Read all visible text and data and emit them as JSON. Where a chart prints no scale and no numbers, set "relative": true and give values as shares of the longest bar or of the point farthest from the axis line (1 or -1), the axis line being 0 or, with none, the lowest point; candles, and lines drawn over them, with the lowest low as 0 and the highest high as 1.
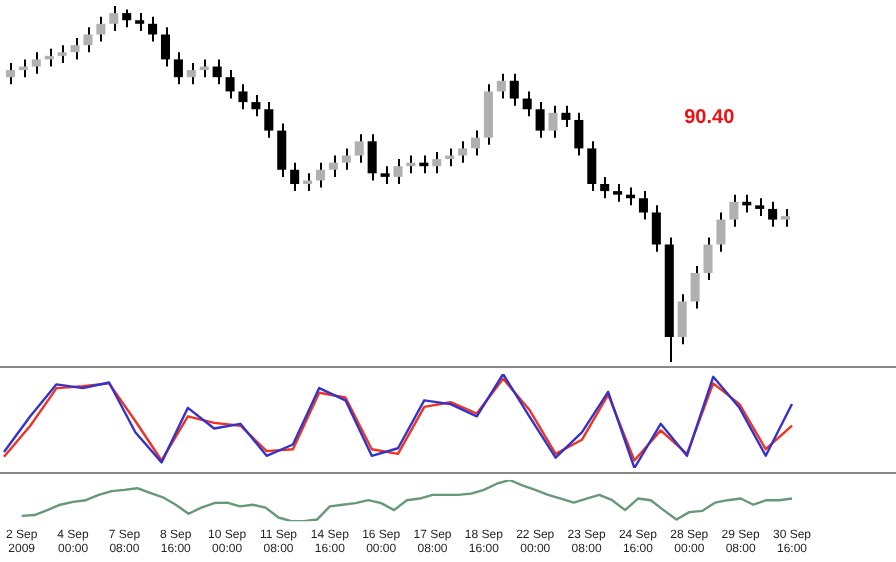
{
  "chart_data": [
    {
      "type": "candlestick",
      "relative": true,
      "grid": false,
      "legend": false,
      "tick_labels": false,
      "annotations": [
        "90.40"
      ],
      "categories": [
        null,
        null,
        null,
        null,
        null,
        null,
        null,
        null,
        null,
        null,
        null,
        null,
        null,
        null,
        null,
        null,
        null,
        null,
        null,
        null,
        null,
        null,
        null,
        null,
        null,
        null,
        null,
        null,
        null,
        null,
        null,
        null,
        null,
        null,
        null,
        null,
        null,
        null,
        null,
        null,
        null,
        null,
        null,
        null,
        null,
        null,
        null,
        null,
        null,
        null,
        null,
        null,
        null,
        null,
        null,
        null,
        null,
        null,
        null,
        null,
        null
      ],
      "ohlc": [
        [
          0.8,
          0.84,
          0.78,
          0.82
        ],
        [
          0.82,
          0.85,
          0.8,
          0.83
        ],
        [
          0.83,
          0.87,
          0.81,
          0.85
        ],
        [
          0.85,
          0.88,
          0.83,
          0.86
        ],
        [
          0.86,
          0.89,
          0.84,
          0.87
        ],
        [
          0.87,
          0.91,
          0.85,
          0.89
        ],
        [
          0.89,
          0.94,
          0.87,
          0.92
        ],
        [
          0.92,
          0.97,
          0.9,
          0.95
        ],
        [
          0.95,
          1,
          0.93,
          0.98
        ],
        [
          0.98,
          0.99,
          0.94,
          0.96
        ],
        [
          0.96,
          0.98,
          0.93,
          0.95
        ],
        [
          0.95,
          0.97,
          0.9,
          0.92
        ],
        [
          0.92,
          0.94,
          0.83,
          0.85
        ],
        [
          0.85,
          0.87,
          0.78,
          0.8
        ],
        [
          0.8,
          0.84,
          0.78,
          0.82
        ],
        [
          0.82,
          0.85,
          0.8,
          0.83
        ],
        [
          0.83,
          0.85,
          0.78,
          0.8
        ],
        [
          0.8,
          0.82,
          0.74,
          0.76
        ],
        [
          0.76,
          0.78,
          0.71,
          0.73
        ],
        [
          0.73,
          0.75,
          0.69,
          0.71
        ],
        [
          0.71,
          0.73,
          0.63,
          0.65
        ],
        [
          0.65,
          0.67,
          0.52,
          0.54
        ],
        [
          0.54,
          0.56,
          0.48,
          0.5
        ],
        [
          0.5,
          0.53,
          0.48,
          0.51
        ],
        [
          0.51,
          0.56,
          0.49,
          0.54
        ],
        [
          0.54,
          0.58,
          0.52,
          0.56
        ],
        [
          0.56,
          0.6,
          0.54,
          0.58
        ],
        [
          0.58,
          0.64,
          0.56,
          0.62
        ],
        [
          0.62,
          0.64,
          0.51,
          0.53
        ],
        [
          0.53,
          0.55,
          0.5,
          0.52
        ],
        [
          0.52,
          0.57,
          0.5,
          0.55
        ],
        [
          0.55,
          0.58,
          0.53,
          0.56
        ],
        [
          0.56,
          0.58,
          0.53,
          0.55
        ],
        [
          0.55,
          0.59,
          0.53,
          0.57
        ],
        [
          0.57,
          0.6,
          0.55,
          0.58
        ],
        [
          0.58,
          0.62,
          0.56,
          0.6
        ],
        [
          0.6,
          0.65,
          0.58,
          0.63
        ],
        [
          0.63,
          0.78,
          0.61,
          0.76
        ],
        [
          0.76,
          0.81,
          0.74,
          0.79
        ],
        [
          0.79,
          0.81,
          0.72,
          0.74
        ],
        [
          0.74,
          0.76,
          0.69,
          0.71
        ],
        [
          0.71,
          0.73,
          0.63,
          0.65
        ],
        [
          0.65,
          0.72,
          0.63,
          0.7
        ],
        [
          0.7,
          0.72,
          0.66,
          0.68
        ],
        [
          0.68,
          0.7,
          0.58,
          0.6
        ],
        [
          0.6,
          0.62,
          0.48,
          0.5
        ],
        [
          0.5,
          0.52,
          0.46,
          0.48
        ],
        [
          0.48,
          0.5,
          0.45,
          0.47
        ],
        [
          0.47,
          0.49,
          0.44,
          0.46
        ],
        [
          0.46,
          0.48,
          0.4,
          0.42
        ],
        [
          0.42,
          0.44,
          0.31,
          0.33
        ],
        [
          0.33,
          0.35,
          0,
          0.07
        ],
        [
          0.07,
          0.19,
          0.05,
          0.17
        ],
        [
          0.17,
          0.27,
          0.15,
          0.25
        ],
        [
          0.25,
          0.35,
          0.23,
          0.33
        ],
        [
          0.33,
          0.42,
          0.31,
          0.4
        ],
        [
          0.4,
          0.47,
          0.38,
          0.45
        ],
        [
          0.45,
          0.47,
          0.42,
          0.44
        ],
        [
          0.44,
          0.46,
          0.41,
          0.43
        ],
        [
          0.43,
          0.45,
          0.38,
          0.4
        ],
        [
          0.4,
          0.43,
          0.38,
          0.41
        ]
      ]
    },
    {
      "type": "line",
      "relative": true,
      "grid": false,
      "legend": false,
      "tick_labels": false,
      "marker": "none",
      "categories": [
        null,
        null,
        null,
        null,
        null,
        null,
        null,
        null,
        null,
        null,
        null,
        null,
        null,
        null,
        null,
        null,
        null,
        null,
        null,
        null,
        null,
        null,
        null,
        null,
        null,
        null,
        null,
        null,
        null,
        null,
        null
      ],
      "series": [
        {
          "color": "#3333cc",
          "values": [
            0.17,
            0.55,
            0.89,
            0.85,
            0.91,
            0.38,
            0.06,
            0.64,
            0.42,
            0.47,
            0.13,
            0.25,
            0.85,
            0.72,
            0.13,
            0.21,
            0.72,
            0.68,
            0.55,
            1,
            0.55,
            0.11,
            0.38,
            0.81,
            0,
            0.47,
            0.13,
            0.97,
            0.64,
            0.13,
            0.68
          ]
        },
        {
          "color": "#ee3322",
          "values": [
            0.12,
            0.45,
            0.85,
            0.87,
            0.9,
            0.5,
            0.08,
            0.55,
            0.48,
            0.45,
            0.18,
            0.2,
            0.8,
            0.75,
            0.2,
            0.15,
            0.65,
            0.7,
            0.58,
            0.95,
            0.62,
            0.15,
            0.3,
            0.78,
            0.08,
            0.4,
            0.15,
            0.9,
            0.68,
            0.2,
            0.45
          ]
        }
      ]
    },
    {
      "type": "line",
      "relative": true,
      "grid": false,
      "legend": false,
      "tick_labels": "x",
      "marker": "none",
      "categories": [
        "2 Sep 2009",
        null,
        null,
        null,
        "4 Sep 00:00",
        null,
        null,
        null,
        "7 Sep 08:00",
        null,
        null,
        null,
        "8 Sep 16:00",
        null,
        null,
        null,
        "10 Sep 00:00",
        null,
        null,
        null,
        "11 Sep 08:00",
        null,
        null,
        null,
        "14 Sep 16:00",
        null,
        null,
        null,
        "16 Sep 00:00",
        null,
        null,
        null,
        "17 Sep 08:00",
        null,
        null,
        null,
        "18 Sep 16:00",
        null,
        null,
        null,
        "22 Sep 00:00",
        null,
        null,
        null,
        "23 Sep 08:00",
        null,
        null,
        null,
        "24 Sep 16:00",
        null,
        null,
        null,
        "28 Sep 00:00",
        null,
        null,
        null,
        "29 Sep 08:00",
        null,
        null,
        null,
        "30 Sep 16:00"
      ],
      "series": [
        {
          "color": "#669977",
          "values": [
            0.13,
            0.15,
            0.27,
            0.4,
            0.47,
            0.51,
            0.64,
            0.73,
            0.76,
            0.8,
            0.69,
            0.58,
            0.4,
            0.18,
            0.33,
            0.44,
            0.45,
            0.36,
            0.4,
            0.33,
            0.09,
            0,
            0,
            0.04,
            0.36,
            0.4,
            0.44,
            0.51,
            0.44,
            0.27,
            0.51,
            0.55,
            0.64,
            0.64,
            0.64,
            0.67,
            0.76,
            0.91,
            1,
            0.87,
            0.76,
            0.64,
            0.55,
            0.45,
            0.55,
            0.64,
            0.51,
            0.27,
            0.55,
            0.51,
            0.27,
            0.04,
            0.22,
            0.25,
            0.45,
            0.51,
            0.55,
            0.4,
            0.51,
            0.51,
            0.55
          ]
        }
      ]
    }
  ]
}
